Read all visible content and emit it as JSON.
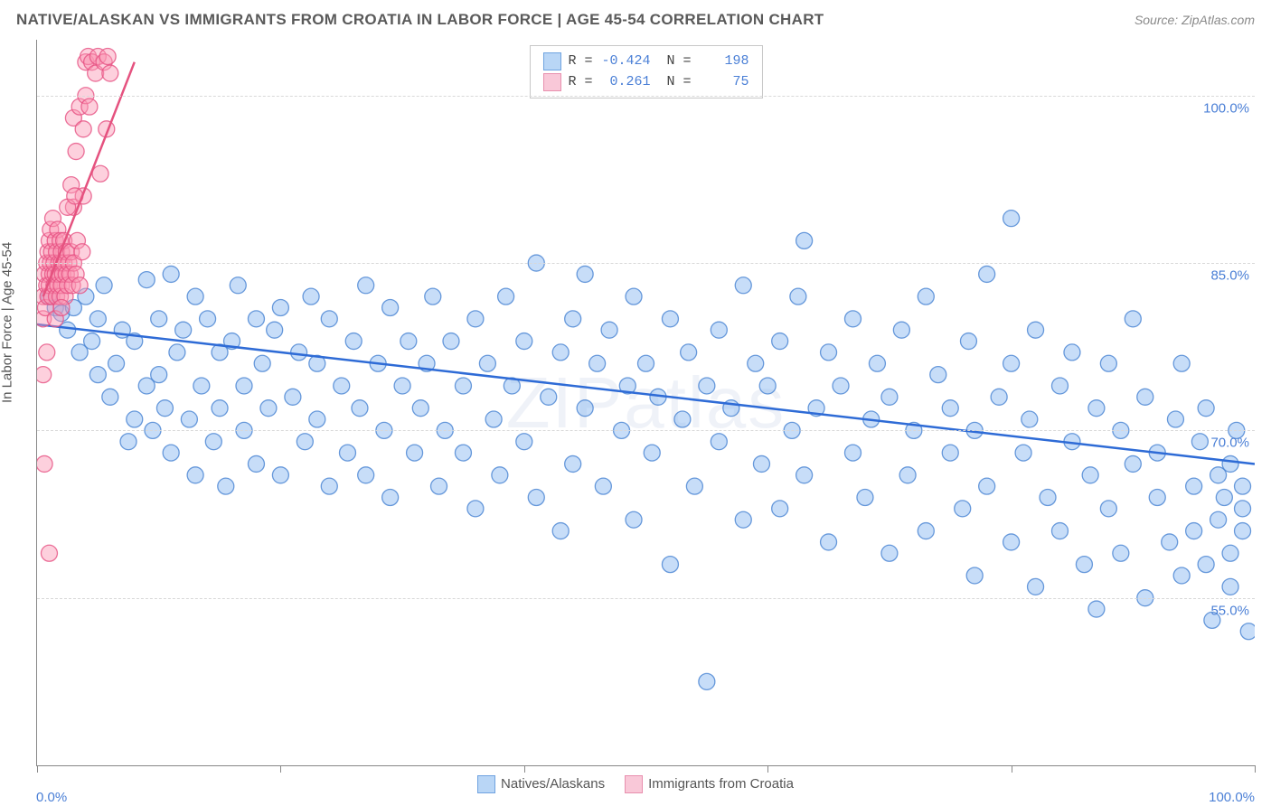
{
  "title": "NATIVE/ALASKAN VS IMMIGRANTS FROM CROATIA IN LABOR FORCE | AGE 45-54 CORRELATION CHART",
  "source_label": "Source: ",
  "source_value": "ZipAtlas.com",
  "y_axis_title": "In Labor Force | Age 45-54",
  "watermark": "ZIPatlas",
  "chart": {
    "type": "scatter",
    "xlim": [
      0,
      100
    ],
    "ylim": [
      40,
      105
    ],
    "x_ticks": [
      0,
      20,
      40,
      60,
      80,
      100
    ],
    "x_tick_labels_shown": {
      "0": "0.0%",
      "100": "100.0%"
    },
    "y_gridlines": [
      55,
      70,
      85,
      100
    ],
    "y_tick_labels": {
      "55": "55.0%",
      "70": "70.0%",
      "85": "85.0%",
      "100": "100.0%"
    },
    "grid_color": "#d8d8d8",
    "axis_color": "#888888",
    "label_color": "#4a7fd6",
    "marker_radius": 9,
    "series": [
      {
        "name": "Natives/Alaskans",
        "fill": "rgba(130,180,240,0.45)",
        "stroke": "rgba(70,130,210,0.8)",
        "swatch_fill": "#b9d6f6",
        "swatch_border": "#6fa3e0",
        "R": "-0.424",
        "N": "198",
        "trend": {
          "x1": 0,
          "y1": 79.5,
          "x2": 100,
          "y2": 67.0,
          "color": "#2e6bd6"
        },
        "points": [
          [
            1,
            82
          ],
          [
            1.5,
            81
          ],
          [
            2,
            80.5
          ],
          [
            2.5,
            79
          ],
          [
            3,
            81
          ],
          [
            3.5,
            77
          ],
          [
            4,
            82
          ],
          [
            4.5,
            78
          ],
          [
            5,
            80
          ],
          [
            5,
            75
          ],
          [
            5.5,
            83
          ],
          [
            6,
            73
          ],
          [
            6.5,
            76
          ],
          [
            7,
            79
          ],
          [
            7.5,
            69
          ],
          [
            8,
            71
          ],
          [
            8,
            78
          ],
          [
            9,
            74
          ],
          [
            9,
            83.5
          ],
          [
            9.5,
            70
          ],
          [
            10,
            80
          ],
          [
            10,
            75
          ],
          [
            10.5,
            72
          ],
          [
            11,
            84
          ],
          [
            11,
            68
          ],
          [
            11.5,
            77
          ],
          [
            12,
            79
          ],
          [
            12.5,
            71
          ],
          [
            13,
            82
          ],
          [
            13,
            66
          ],
          [
            13.5,
            74
          ],
          [
            14,
            80
          ],
          [
            14.5,
            69
          ],
          [
            15,
            77
          ],
          [
            15,
            72
          ],
          [
            15.5,
            65
          ],
          [
            16,
            78
          ],
          [
            16.5,
            83
          ],
          [
            17,
            70
          ],
          [
            17,
            74
          ],
          [
            18,
            80
          ],
          [
            18,
            67
          ],
          [
            18.5,
            76
          ],
          [
            19,
            72
          ],
          [
            19.5,
            79
          ],
          [
            20,
            66
          ],
          [
            20,
            81
          ],
          [
            21,
            73
          ],
          [
            21.5,
            77
          ],
          [
            22,
            69
          ],
          [
            22.5,
            82
          ],
          [
            23,
            71
          ],
          [
            23,
            76
          ],
          [
            24,
            65
          ],
          [
            24,
            80
          ],
          [
            25,
            74
          ],
          [
            25.5,
            68
          ],
          [
            26,
            78
          ],
          [
            26.5,
            72
          ],
          [
            27,
            83
          ],
          [
            27,
            66
          ],
          [
            28,
            76
          ],
          [
            28.5,
            70
          ],
          [
            29,
            81
          ],
          [
            29,
            64
          ],
          [
            30,
            74
          ],
          [
            30.5,
            78
          ],
          [
            31,
            68
          ],
          [
            31.5,
            72
          ],
          [
            32,
            76
          ],
          [
            32.5,
            82
          ],
          [
            33,
            65
          ],
          [
            33.5,
            70
          ],
          [
            34,
            78
          ],
          [
            35,
            74
          ],
          [
            35,
            68
          ],
          [
            36,
            80
          ],
          [
            36,
            63
          ],
          [
            37,
            76
          ],
          [
            37.5,
            71
          ],
          [
            38,
            66
          ],
          [
            38.5,
            82
          ],
          [
            39,
            74
          ],
          [
            40,
            69
          ],
          [
            40,
            78
          ],
          [
            41,
            85
          ],
          [
            41,
            64
          ],
          [
            42,
            73
          ],
          [
            43,
            77
          ],
          [
            43,
            61
          ],
          [
            44,
            80
          ],
          [
            44,
            67
          ],
          [
            45,
            84
          ],
          [
            45,
            72
          ],
          [
            46,
            76
          ],
          [
            46.5,
            65
          ],
          [
            47,
            79
          ],
          [
            48,
            70
          ],
          [
            48.5,
            74
          ],
          [
            49,
            82
          ],
          [
            49,
            62
          ],
          [
            50,
            76
          ],
          [
            50.5,
            68
          ],
          [
            51,
            73
          ],
          [
            52,
            80
          ],
          [
            52,
            58
          ],
          [
            53,
            71
          ],
          [
            53.5,
            77
          ],
          [
            54,
            65
          ],
          [
            55,
            74
          ],
          [
            55,
            47.5
          ],
          [
            56,
            79
          ],
          [
            56,
            69
          ],
          [
            57,
            72
          ],
          [
            58,
            83
          ],
          [
            58,
            62
          ],
          [
            59,
            76
          ],
          [
            59.5,
            67
          ],
          [
            60,
            74
          ],
          [
            61,
            78
          ],
          [
            61,
            63
          ],
          [
            62,
            70
          ],
          [
            62.5,
            82
          ],
          [
            63,
            87
          ],
          [
            63,
            66
          ],
          [
            64,
            72
          ],
          [
            65,
            77
          ],
          [
            65,
            60
          ],
          [
            66,
            74
          ],
          [
            67,
            68
          ],
          [
            67,
            80
          ],
          [
            68,
            64
          ],
          [
            68.5,
            71
          ],
          [
            69,
            76
          ],
          [
            70,
            59
          ],
          [
            70,
            73
          ],
          [
            71,
            79
          ],
          [
            71.5,
            66
          ],
          [
            72,
            70
          ],
          [
            73,
            82
          ],
          [
            73,
            61
          ],
          [
            74,
            75
          ],
          [
            75,
            68
          ],
          [
            75,
            72
          ],
          [
            76,
            63
          ],
          [
            76.5,
            78
          ],
          [
            77,
            57
          ],
          [
            77,
            70
          ],
          [
            78,
            84
          ],
          [
            78,
            65
          ],
          [
            79,
            73
          ],
          [
            80,
            60
          ],
          [
            80,
            76
          ],
          [
            80,
            89
          ],
          [
            81,
            68
          ],
          [
            81.5,
            71
          ],
          [
            82,
            56
          ],
          [
            82,
            79
          ],
          [
            83,
            64
          ],
          [
            84,
            74
          ],
          [
            84,
            61
          ],
          [
            85,
            69
          ],
          [
            85,
            77
          ],
          [
            86,
            58
          ],
          [
            86.5,
            66
          ],
          [
            87,
            72
          ],
          [
            87,
            54
          ],
          [
            88,
            76
          ],
          [
            88,
            63
          ],
          [
            89,
            70
          ],
          [
            89,
            59
          ],
          [
            90,
            67
          ],
          [
            90,
            80
          ],
          [
            91,
            55
          ],
          [
            91,
            73
          ],
          [
            92,
            64
          ],
          [
            92,
            68
          ],
          [
            93,
            60
          ],
          [
            93.5,
            71
          ],
          [
            94,
            57
          ],
          [
            94,
            76
          ],
          [
            95,
            65
          ],
          [
            95,
            61
          ],
          [
            95.5,
            69
          ],
          [
            96,
            58
          ],
          [
            96,
            72
          ],
          [
            96.5,
            53
          ],
          [
            97,
            66
          ],
          [
            97,
            62
          ],
          [
            97.5,
            64
          ],
          [
            98,
            59
          ],
          [
            98,
            67
          ],
          [
            98,
            56
          ],
          [
            98.5,
            70
          ],
          [
            99,
            63
          ],
          [
            99,
            65
          ],
          [
            99,
            61
          ],
          [
            99.5,
            52
          ]
        ]
      },
      {
        "name": "Immigrants from Croatia",
        "fill": "rgba(250,150,180,0.45)",
        "stroke": "rgba(230,80,130,0.8)",
        "swatch_fill": "#f9c8d8",
        "swatch_border": "#e88fae",
        "R": "0.261",
        "N": "75",
        "trend": {
          "x1": 0.5,
          "y1": 82,
          "x2": 8,
          "y2": 103,
          "color": "#e5527f"
        },
        "points": [
          [
            0.5,
            80
          ],
          [
            0.5,
            82
          ],
          [
            0.6,
            84
          ],
          [
            0.7,
            81
          ],
          [
            0.8,
            85
          ],
          [
            0.8,
            83
          ],
          [
            0.9,
            86
          ],
          [
            0.9,
            82
          ],
          [
            1,
            84
          ],
          [
            1,
            87
          ],
          [
            1,
            83
          ],
          [
            1.1,
            85
          ],
          [
            1.1,
            88
          ],
          [
            1.2,
            82
          ],
          [
            1.2,
            86
          ],
          [
            1.3,
            84
          ],
          [
            1.3,
            89
          ],
          [
            1.4,
            85
          ],
          [
            1.4,
            83
          ],
          [
            1.5,
            87
          ],
          [
            1.5,
            84
          ],
          [
            1.6,
            82
          ],
          [
            1.6,
            86
          ],
          [
            1.7,
            88
          ],
          [
            1.7,
            83
          ],
          [
            1.8,
            85
          ],
          [
            1.8,
            84
          ],
          [
            1.9,
            87
          ],
          [
            1.9,
            82
          ],
          [
            2,
            85
          ],
          [
            2,
            86
          ],
          [
            2,
            83
          ],
          [
            2.1,
            84
          ],
          [
            2.2,
            87
          ],
          [
            2.2,
            85
          ],
          [
            2.3,
            82
          ],
          [
            2.4,
            86
          ],
          [
            2.4,
            84
          ],
          [
            2.5,
            83
          ],
          [
            2.6,
            85
          ],
          [
            2.7,
            84
          ],
          [
            2.8,
            86
          ],
          [
            2.9,
            83
          ],
          [
            3,
            85
          ],
          [
            3,
            90
          ],
          [
            3.2,
            84
          ],
          [
            3.3,
            87
          ],
          [
            3.5,
            83
          ],
          [
            3.7,
            86
          ],
          [
            3.8,
            91
          ],
          [
            4,
            103
          ],
          [
            4.2,
            103.5
          ],
          [
            4.5,
            103
          ],
          [
            4.8,
            102
          ],
          [
            5,
            103.5
          ],
          [
            5.2,
            93
          ],
          [
            5.5,
            103
          ],
          [
            5.7,
            97
          ],
          [
            5.8,
            103.5
          ],
          [
            6,
            102
          ],
          [
            0.8,
            77
          ],
          [
            0.5,
            75
          ],
          [
            0.6,
            67
          ],
          [
            1,
            59
          ],
          [
            3,
            98
          ],
          [
            3.5,
            99
          ],
          [
            3.2,
            95
          ],
          [
            3.8,
            97
          ],
          [
            4,
            100
          ],
          [
            4.3,
            99
          ],
          [
            2.5,
            90
          ],
          [
            2.8,
            92
          ],
          [
            3.1,
            91
          ],
          [
            1.5,
            80
          ],
          [
            2,
            81
          ]
        ]
      }
    ]
  },
  "bottom_legend": [
    {
      "label": "Natives/Alaskans",
      "fill": "#b9d6f6",
      "border": "#6fa3e0"
    },
    {
      "label": "Immigrants from Croatia",
      "fill": "#f9c8d8",
      "border": "#e88fae"
    }
  ]
}
